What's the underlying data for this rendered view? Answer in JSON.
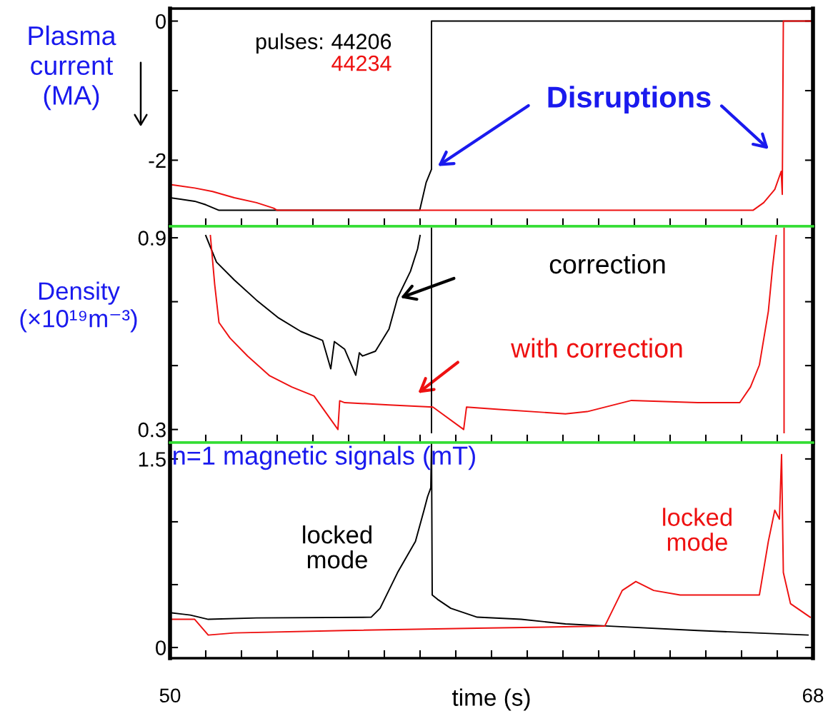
{
  "chart_data": [
    {
      "type": "line",
      "ylabel": "Plasma\ncurrent\n(MA)",
      "legend_title": "pulses:",
      "legend": "top left",
      "tick_labels": "y",
      "xlim": [
        50,
        68
      ],
      "ylim": [
        -2.95,
        0.18
      ],
      "yticks": [
        0,
        {
          "value": -1,
          "label": null
        },
        -2
      ],
      "xticks": [
        {
          "value": 50,
          "label": null
        },
        {
          "value": 51,
          "label": null
        },
        {
          "value": 52,
          "label": null
        },
        {
          "value": 53,
          "label": null
        },
        {
          "value": 54,
          "label": null
        },
        {
          "value": 55,
          "label": null
        },
        {
          "value": 56,
          "label": null
        },
        {
          "value": 57,
          "label": null
        },
        {
          "value": 58,
          "label": null
        },
        {
          "value": 59,
          "label": null
        },
        {
          "value": 60,
          "label": null
        },
        {
          "value": 61,
          "label": null
        },
        {
          "value": 62,
          "label": null
        },
        {
          "value": 63,
          "label": null
        },
        {
          "value": 64,
          "label": null
        },
        {
          "value": 65,
          "label": null
        },
        {
          "value": 66,
          "label": null
        },
        {
          "value": 67,
          "label": null
        },
        {
          "value": 68,
          "label": null
        }
      ],
      "series": [
        {
          "name": "44206",
          "color": "#000000",
          "x": [
            50,
            50.69,
            51.0,
            51.37,
            56.99,
            57.17,
            57.32,
            57.32,
            68
          ],
          "values": [
            -2.54,
            -2.59,
            -2.64,
            -2.72,
            -2.72,
            -2.32,
            -2.13,
            0,
            0
          ]
        },
        {
          "name": "44234",
          "color": "#ee1111",
          "x": [
            50,
            50.69,
            51.19,
            51.8,
            52.42,
            52.9,
            53.0,
            66.32,
            66.62,
            66.93,
            67.11,
            67.14,
            67.17,
            68
          ],
          "values": [
            -2.35,
            -2.4,
            -2.45,
            -2.54,
            -2.61,
            -2.69,
            -2.72,
            -2.72,
            -2.61,
            -2.42,
            -2.16,
            -2.49,
            0,
            0
          ]
        }
      ],
      "annotations": [
        "Disruptions"
      ]
    },
    {
      "type": "line",
      "ylabel": "Density\n(×10¹⁹m⁻³)",
      "tick_labels": "y",
      "xlim": [
        50,
        68
      ],
      "ylim": [
        0.259,
        0.936
      ],
      "yticks": [
        0.9,
        {
          "value": 0.7,
          "label": null
        },
        {
          "value": 0.5,
          "label": null
        },
        0.3
      ],
      "xticks": [
        {
          "value": 50,
          "label": null
        },
        {
          "value": 51,
          "label": null
        },
        {
          "value": 52,
          "label": null
        },
        {
          "value": 53,
          "label": null
        },
        {
          "value": 54,
          "label": null
        },
        {
          "value": 55,
          "label": null
        },
        {
          "value": 56,
          "label": null
        },
        {
          "value": 57,
          "label": null
        },
        {
          "value": 58,
          "label": null
        },
        {
          "value": 59,
          "label": null
        },
        {
          "value": 60,
          "label": null
        },
        {
          "value": 61,
          "label": null
        },
        {
          "value": 62,
          "label": null
        },
        {
          "value": 63,
          "label": null
        },
        {
          "value": 64,
          "label": null
        },
        {
          "value": 65,
          "label": null
        },
        {
          "value": 66,
          "label": null
        },
        {
          "value": 67,
          "label": null
        },
        {
          "value": 68,
          "label": null
        }
      ],
      "series": [
        {
          "color": "#000000",
          "x": [
            51.0,
            51.3,
            51.8,
            52.42,
            53.04,
            53.66,
            54.27,
            54.5,
            54.6,
            54.89,
            55.2,
            55.3,
            55.39,
            55.75,
            56.13,
            56.37,
            56.73,
            56.93,
            57.0,
            57.16,
            57.32,
            57.32
          ],
          "values": [
            0.907,
            0.824,
            0.768,
            0.705,
            0.649,
            0.607,
            0.579,
            0.49,
            0.575,
            0.551,
            0.47,
            0.54,
            0.53,
            0.545,
            0.614,
            0.712,
            0.795,
            0.865,
            0.907,
            null,
            0.93,
            0.29
          ]
        },
        {
          "color": "#ee1111",
          "x": [
            51.13,
            51.25,
            51.37,
            51.68,
            52.17,
            52.79,
            53.41,
            54.03,
            54.7,
            54.75,
            54.89,
            56.13,
            57.36,
            58.22,
            58.3,
            59.21,
            61.07,
            61.68,
            62.92,
            64.77,
            65.95,
            66.25,
            66.5,
            66.75,
            66.87,
            66.97,
            67.08,
            67.19,
            67.19
          ],
          "values": [
            0.907,
            0.754,
            0.635,
            0.586,
            0.53,
            0.468,
            0.433,
            0.405,
            0.3,
            0.39,
            0.384,
            0.377,
            0.37,
            0.3,
            0.37,
            0.363,
            0.349,
            0.356,
            0.391,
            0.384,
            0.384,
            0.433,
            0.502,
            0.67,
            0.81,
            0.907,
            null,
            0.93,
            0.29
          ]
        }
      ],
      "annotations": [
        "correction",
        "with correction"
      ]
    },
    {
      "type": "line",
      "title": "n=1 magnetic signals (mT)",
      "xlabel": "time (s)",
      "xlim": [
        50,
        68
      ],
      "ylim": [
        -0.085,
        1.63
      ],
      "yticks": [
        1.5,
        {
          "value": 1.0,
          "label": null
        },
        {
          "value": 0.5,
          "label": null
        },
        0
      ],
      "xticks": [
        50,
        {
          "value": 51,
          "label": null
        },
        {
          "value": 52,
          "label": null
        },
        {
          "value": 53,
          "label": null
        },
        {
          "value": 54,
          "label": null
        },
        {
          "value": 55,
          "label": null
        },
        {
          "value": 56,
          "label": null
        },
        {
          "value": 57,
          "label": null
        },
        {
          "value": 58,
          "label": null
        },
        {
          "value": 59,
          "label": null
        },
        {
          "value": 60,
          "label": null
        },
        {
          "value": 61,
          "label": null
        },
        {
          "value": 62,
          "label": null
        },
        {
          "value": 63,
          "label": null
        },
        {
          "value": 64,
          "label": null
        },
        {
          "value": 65,
          "label": null
        },
        {
          "value": 66,
          "label": null
        },
        {
          "value": 67,
          "label": null
        },
        68
      ],
      "series": [
        {
          "color": "#000000",
          "x": [
            50,
            50.57,
            51.07,
            52.42,
            55.63,
            55.88,
            56.37,
            56.87,
            57.11,
            57.21,
            57.3,
            57.32,
            57.34,
            57.49,
            57.86,
            58.6,
            59.83,
            61.07,
            62.31,
            64.77,
            67.86
          ],
          "values": [
            0.277,
            0.258,
            0.224,
            0.235,
            0.241,
            0.312,
            0.596,
            0.844,
            1.092,
            1.2,
            1.27,
            1.62,
            0.418,
            0.383,
            0.312,
            0.241,
            0.224,
            0.188,
            0.17,
            0.135,
            0.099
          ]
        },
        {
          "color": "#ee1111",
          "x": [
            50,
            50.69,
            51.07,
            51.8,
            54.89,
            58.6,
            62.17,
            62.66,
            63.04,
            63.54,
            64.28,
            66.5,
            66.75,
            66.93,
            67.06,
            67.12,
            67.17,
            67.37,
            67.92
          ],
          "values": [
            0.224,
            0.224,
            0.099,
            0.116,
            0.135,
            0.153,
            0.17,
            0.454,
            0.525,
            0.454,
            0.418,
            0.418,
            0.844,
            1.092,
            1.021,
            1.535,
            0.596,
            0.349,
            0.241
          ]
        }
      ],
      "annotations": [
        "locked\nmode",
        "locked\nmode"
      ]
    }
  ]
}
